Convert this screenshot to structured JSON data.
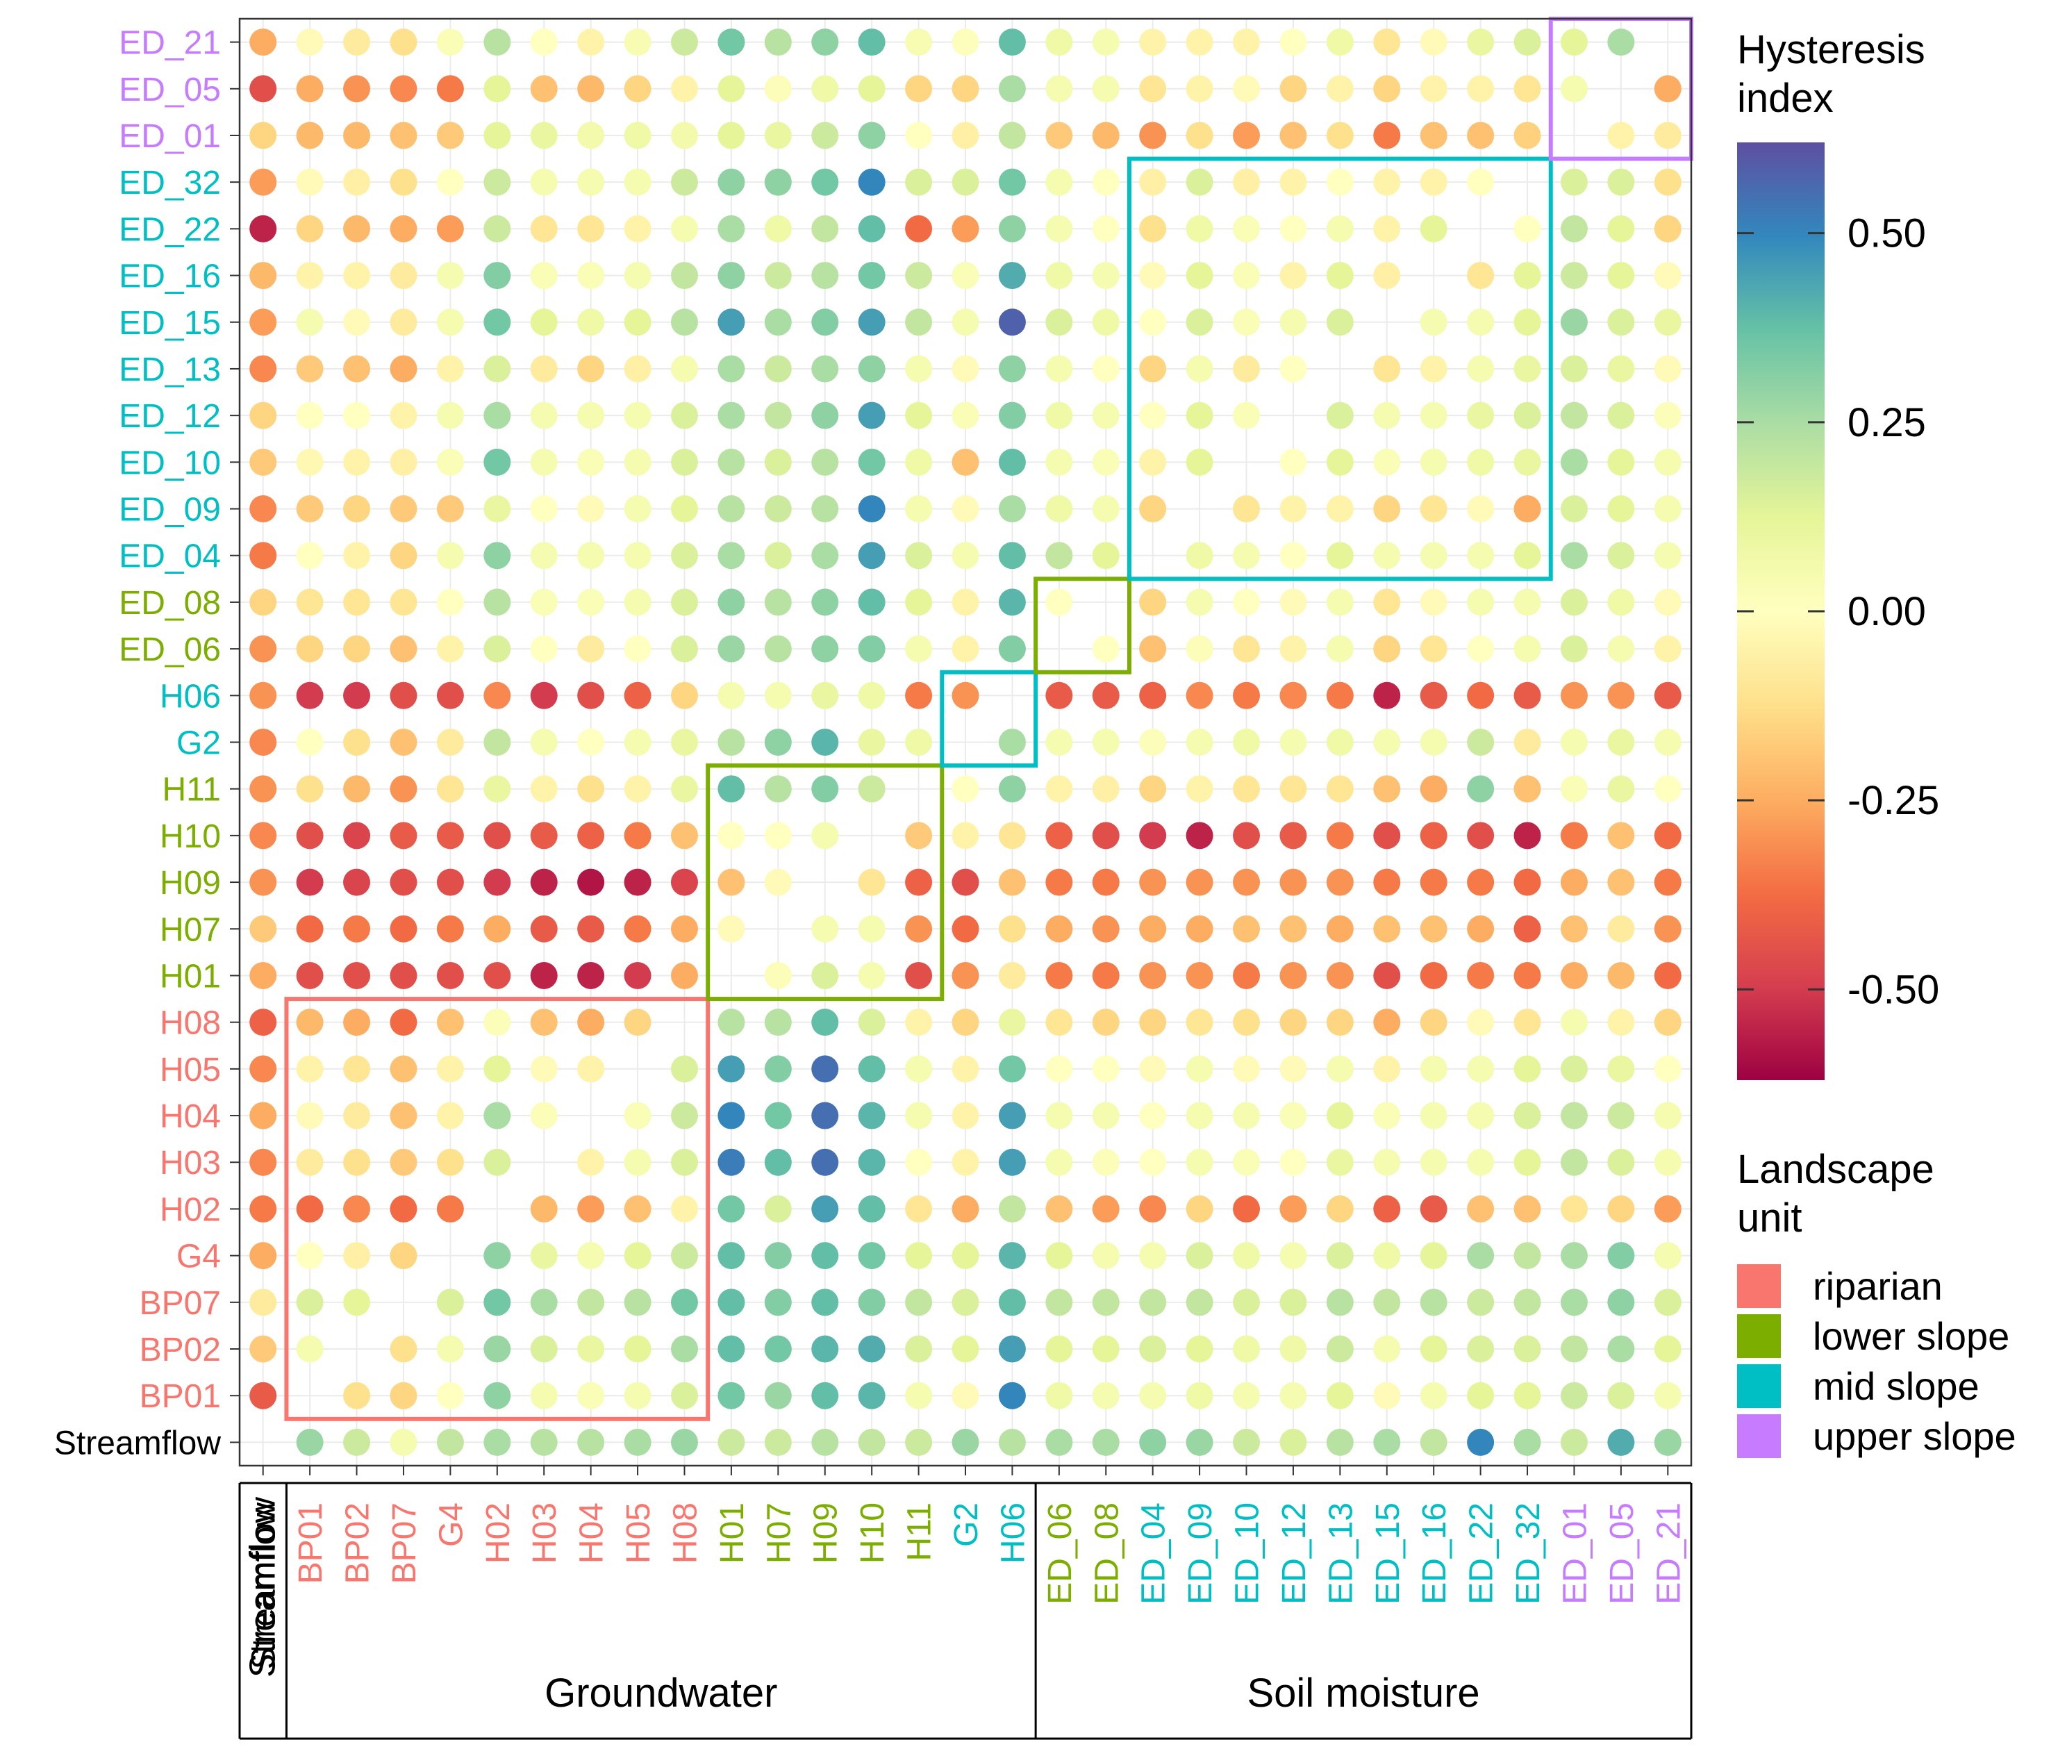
{
  "chart_data": {
    "type": "heatmap",
    "subtype": "dot-matrix",
    "x_categories": [
      "Streamflow",
      "BP01",
      "BP02",
      "BP07",
      "G4",
      "H02",
      "H03",
      "H04",
      "H05",
      "H08",
      "H01",
      "H07",
      "H09",
      "H10",
      "H11",
      "G2",
      "H06",
      "ED_06",
      "ED_08",
      "ED_04",
      "ED_09",
      "ED_10",
      "ED_12",
      "ED_13",
      "ED_15",
      "ED_16",
      "ED_22",
      "ED_32",
      "ED_01",
      "ED_05",
      "ED_21"
    ],
    "y_categories": [
      "Streamflow",
      "BP01",
      "BP02",
      "BP07",
      "G4",
      "H02",
      "H03",
      "H04",
      "H05",
      "H08",
      "H01",
      "H07",
      "H09",
      "H10",
      "H11",
      "G2",
      "H06",
      "ED_06",
      "ED_08",
      "ED_04",
      "ED_09",
      "ED_10",
      "ED_12",
      "ED_13",
      "ED_15",
      "ED_16",
      "ED_22",
      "ED_32",
      "ED_01",
      "ED_05",
      "ED_21"
    ],
    "units": {
      "Streamflow": "none",
      "BP01": "riparian",
      "BP02": "riparian",
      "BP07": "riparian",
      "G4": "riparian",
      "H02": "riparian",
      "H03": "riparian",
      "H04": "riparian",
      "H05": "riparian",
      "H08": "riparian",
      "H01": "lower slope",
      "H07": "lower slope",
      "H09": "lower slope",
      "H10": "lower slope",
      "H11": "lower slope",
      "G2": "mid slope",
      "H06": "mid slope",
      "ED_06": "lower slope",
      "ED_08": "lower slope",
      "ED_04": "mid slope",
      "ED_09": "mid slope",
      "ED_10": "mid slope",
      "ED_12": "mid slope",
      "ED_13": "mid slope",
      "ED_15": "mid slope",
      "ED_16": "mid slope",
      "ED_22": "mid slope",
      "ED_32": "mid slope",
      "ED_01": "upper slope",
      "ED_05": "upper slope",
      "ED_21": "upper slope"
    },
    "groups": [
      {
        "label": "Streamflow",
        "from": "Streamflow",
        "to": "Streamflow",
        "vertical": true
      },
      {
        "label": "Groundwater",
        "from": "BP01",
        "to": "H06",
        "vertical": false
      },
      {
        "label": "Soil moisture",
        "from": "ED_06",
        "to": "ED_21",
        "vertical": false
      }
    ],
    "highlight_boxes": [
      {
        "unit": "riparian",
        "from": "BP01",
        "to": "H08"
      },
      {
        "unit": "lower slope",
        "from": "H01",
        "to": "H11"
      },
      {
        "unit": "mid slope",
        "from": "G2",
        "to": "H06"
      },
      {
        "unit": "lower slope",
        "from": "ED_06",
        "to": "ED_08"
      },
      {
        "unit": "mid slope",
        "from": "ED_04",
        "to": "ED_32"
      },
      {
        "unit": "upper slope",
        "from": "ED_01",
        "to": "ED_21"
      }
    ],
    "value_range": [
      -0.62,
      0.62
    ],
    "colorbar": {
      "title": "Hysteresis index",
      "title_lines": [
        "Hysteresis",
        "index"
      ],
      "ticks": [
        0.5,
        0.25,
        0.0,
        -0.25,
        -0.5
      ],
      "tick_labels": [
        "0.50",
        "0.25",
        "0.00",
        "-0.25",
        "-0.50"
      ],
      "palette": [
        "#9e0142",
        "#d53e4f",
        "#f46d43",
        "#fdae61",
        "#fee08b",
        "#ffffbf",
        "#e6f598",
        "#abdda4",
        "#66c2a5",
        "#3288bd",
        "#5e4fa2"
      ]
    },
    "legend": {
      "title": "Landscape unit",
      "title_lines": [
        "Landscape",
        "unit"
      ],
      "position": "right",
      "items": [
        {
          "label": "riparian",
          "unit": "riparian",
          "color": "#f8766d"
        },
        {
          "label": "lower slope",
          "unit": "lower slope",
          "color": "#7cae00"
        },
        {
          "label": "mid slope",
          "unit": "mid slope",
          "color": "#00bfc4"
        },
        {
          "label": "upper slope",
          "unit": "upper slope",
          "color": "#c77cff"
        }
      ]
    },
    "unit_colors": {
      "none": "#000000",
      "riparian": "#f8766d",
      "lower slope": "#7cae00",
      "mid slope": "#00bfc4",
      "upper slope": "#c77cff"
    },
    "grid": true,
    "rows": {
      "ED_21": [
        -0.25,
        -0.02,
        -0.08,
        -0.12,
        0.03,
        0.22,
        0.0,
        -0.05,
        0.04,
        0.18,
        0.35,
        0.22,
        0.3,
        0.38,
        0.04,
        0.01,
        0.38,
        0.08,
        0.05,
        -0.05,
        -0.05,
        -0.05,
        0.0,
        0.08,
        -0.1,
        -0.02,
        0.1,
        0.15,
        0.12,
        0.25,
        null
      ],
      "ED_05": [
        -0.45,
        -0.25,
        -0.3,
        -0.32,
        -0.35,
        0.12,
        -0.2,
        -0.22,
        -0.15,
        -0.05,
        0.12,
        0.02,
        0.08,
        0.12,
        -0.15,
        -0.15,
        0.25,
        0.05,
        0.05,
        -0.1,
        -0.05,
        -0.02,
        -0.15,
        -0.05,
        -0.15,
        -0.05,
        -0.05,
        -0.1,
        0.05,
        null,
        -0.25
      ],
      "ED_01": [
        -0.15,
        -0.22,
        -0.22,
        -0.2,
        -0.18,
        0.12,
        0.1,
        0.06,
        0.08,
        0.06,
        0.12,
        0.1,
        0.18,
        0.3,
        0.0,
        -0.06,
        0.2,
        -0.18,
        -0.22,
        -0.3,
        -0.12,
        -0.28,
        -0.2,
        -0.12,
        -0.35,
        -0.2,
        -0.2,
        -0.16,
        null,
        -0.05,
        -0.08
      ],
      "ED_32": [
        -0.28,
        -0.02,
        -0.06,
        -0.12,
        0.0,
        0.18,
        0.05,
        0.05,
        0.05,
        0.18,
        0.3,
        0.3,
        0.35,
        0.5,
        0.15,
        0.15,
        0.35,
        0.05,
        0.0,
        -0.06,
        0.15,
        -0.06,
        -0.05,
        0.0,
        -0.05,
        -0.05,
        0.0,
        null,
        0.15,
        0.15,
        -0.12
      ],
      "ED_22": [
        -0.55,
        -0.15,
        -0.22,
        -0.25,
        -0.28,
        0.18,
        -0.1,
        -0.1,
        -0.05,
        0.05,
        0.25,
        0.08,
        0.2,
        0.38,
        -0.38,
        -0.28,
        0.3,
        0.05,
        0.0,
        -0.12,
        0.08,
        0.03,
        0.0,
        0.05,
        -0.05,
        0.12,
        null,
        0.0,
        0.2,
        0.12,
        -0.15
      ],
      "ED_16": [
        -0.22,
        -0.05,
        -0.05,
        -0.08,
        0.05,
        0.32,
        0.03,
        0.03,
        0.05,
        0.2,
        0.3,
        0.18,
        0.22,
        0.35,
        0.18,
        0.03,
        0.42,
        0.08,
        0.05,
        -0.02,
        0.12,
        0.03,
        -0.05,
        0.12,
        -0.06,
        null,
        -0.1,
        0.12,
        0.18,
        0.12,
        -0.02
      ],
      "ED_15": [
        -0.28,
        0.05,
        -0.02,
        -0.08,
        0.05,
        0.35,
        0.12,
        0.08,
        0.12,
        0.22,
        0.45,
        0.25,
        0.32,
        0.45,
        0.2,
        0.05,
        0.58,
        0.15,
        0.08,
        0.0,
        0.15,
        0.03,
        0.05,
        0.15,
        null,
        0.05,
        0.05,
        0.12,
        0.28,
        0.15,
        0.1
      ],
      "ED_13": [
        -0.32,
        -0.18,
        -0.2,
        -0.25,
        -0.05,
        0.15,
        -0.08,
        -0.15,
        -0.06,
        0.05,
        0.25,
        0.18,
        0.25,
        0.3,
        0.05,
        -0.02,
        0.3,
        0.05,
        0.0,
        -0.15,
        0.05,
        -0.08,
        0.0,
        null,
        -0.1,
        -0.05,
        0.05,
        0.1,
        0.15,
        0.1,
        -0.02
      ],
      "ED_12": [
        -0.15,
        0.0,
        0.0,
        -0.05,
        0.05,
        0.25,
        0.05,
        0.05,
        0.05,
        0.15,
        0.25,
        0.2,
        0.3,
        0.45,
        0.12,
        0.03,
        0.32,
        0.08,
        0.05,
        0.0,
        0.12,
        0.03,
        null,
        0.15,
        0.05,
        0.05,
        0.1,
        0.15,
        0.2,
        0.15,
        0.02
      ],
      "ED_10": [
        -0.18,
        -0.03,
        -0.05,
        -0.06,
        0.03,
        0.35,
        0.05,
        0.03,
        0.05,
        0.15,
        0.22,
        0.15,
        0.22,
        0.35,
        0.08,
        -0.2,
        0.38,
        0.05,
        0.03,
        -0.05,
        0.12,
        null,
        0.0,
        0.12,
        0.03,
        0.05,
        0.08,
        0.1,
        0.25,
        0.12,
        0.05
      ],
      "ED_09": [
        -0.32,
        -0.18,
        -0.15,
        -0.18,
        -0.18,
        0.1,
        0.0,
        -0.02,
        0.05,
        0.12,
        0.22,
        0.18,
        0.22,
        0.5,
        0.05,
        -0.02,
        0.25,
        0.08,
        0.05,
        -0.15,
        null,
        -0.1,
        -0.05,
        -0.05,
        -0.15,
        -0.1,
        -0.02,
        -0.25,
        0.15,
        0.12,
        0.05
      ],
      "ED_04": [
        -0.35,
        0.0,
        -0.05,
        -0.15,
        0.05,
        0.3,
        0.05,
        0.05,
        0.05,
        0.15,
        0.25,
        0.15,
        0.25,
        0.45,
        0.15,
        0.05,
        0.38,
        0.2,
        0.12,
        null,
        0.08,
        0.05,
        0.0,
        0.12,
        0.05,
        0.05,
        0.05,
        0.12,
        0.25,
        0.15,
        0.05
      ],
      "ED_08": [
        -0.15,
        -0.1,
        -0.1,
        -0.1,
        0.0,
        0.22,
        0.03,
        0.03,
        0.05,
        0.15,
        0.3,
        0.22,
        0.3,
        0.38,
        0.12,
        -0.05,
        0.4,
        0.0,
        null,
        -0.15,
        0.05,
        0.0,
        -0.02,
        0.05,
        -0.1,
        -0.02,
        0.05,
        0.05,
        0.15,
        0.08,
        -0.02
      ],
      "ED_06": [
        -0.3,
        -0.15,
        -0.15,
        -0.2,
        -0.05,
        0.15,
        0.0,
        -0.08,
        0.0,
        0.15,
        0.28,
        0.22,
        0.3,
        0.32,
        0.05,
        -0.05,
        0.32,
        null,
        0.0,
        -0.2,
        0.02,
        -0.1,
        -0.05,
        0.05,
        -0.15,
        -0.1,
        0.0,
        0.05,
        0.15,
        0.05,
        -0.05
      ],
      "H06": [
        -0.3,
        -0.5,
        -0.5,
        -0.45,
        -0.45,
        -0.32,
        -0.5,
        -0.45,
        -0.4,
        -0.15,
        0.05,
        0.05,
        0.1,
        0.08,
        -0.35,
        -0.3,
        null,
        -0.42,
        -0.42,
        -0.4,
        -0.32,
        -0.35,
        -0.32,
        -0.35,
        -0.55,
        -0.42,
        -0.38,
        -0.42,
        -0.3,
        -0.3,
        -0.42
      ],
      "G2": [
        -0.32,
        0.0,
        -0.12,
        -0.2,
        -0.08,
        0.2,
        0.05,
        0.0,
        0.05,
        0.1,
        0.22,
        0.3,
        0.4,
        0.1,
        0.08,
        null,
        0.25,
        0.05,
        0.05,
        0.02,
        0.05,
        0.08,
        0.05,
        0.08,
        0.05,
        0.05,
        0.18,
        -0.08,
        0.05,
        0.1,
        0.05
      ],
      "H11": [
        -0.3,
        -0.12,
        -0.22,
        -0.3,
        -0.1,
        0.1,
        -0.05,
        -0.12,
        -0.05,
        0.1,
        0.38,
        0.22,
        0.32,
        0.18,
        null,
        0.0,
        0.3,
        -0.05,
        -0.06,
        -0.15,
        -0.05,
        -0.1,
        -0.1,
        -0.1,
        -0.2,
        -0.25,
        0.3,
        -0.2,
        0.03,
        0.1,
        0.0
      ],
      "H10": [
        -0.32,
        -0.45,
        -0.48,
        -0.42,
        -0.42,
        -0.45,
        -0.42,
        -0.4,
        -0.35,
        -0.2,
        0.0,
        0.0,
        0.05,
        null,
        -0.18,
        -0.05,
        -0.1,
        -0.4,
        -0.45,
        -0.5,
        -0.55,
        -0.45,
        -0.42,
        -0.35,
        -0.45,
        -0.4,
        -0.45,
        -0.55,
        -0.35,
        -0.2,
        -0.38
      ],
      "H09": [
        -0.3,
        -0.5,
        -0.48,
        -0.45,
        -0.45,
        -0.5,
        -0.55,
        -0.58,
        -0.55,
        -0.48,
        -0.2,
        -0.02,
        null,
        -0.1,
        -0.4,
        -0.45,
        -0.2,
        -0.35,
        -0.35,
        -0.3,
        -0.3,
        -0.3,
        -0.3,
        -0.3,
        -0.35,
        -0.35,
        -0.35,
        -0.38,
        -0.25,
        -0.2,
        -0.35
      ],
      "H07": [
        -0.18,
        -0.38,
        -0.35,
        -0.38,
        -0.35,
        -0.25,
        -0.42,
        -0.42,
        -0.35,
        -0.25,
        -0.02,
        null,
        0.05,
        0.05,
        -0.3,
        -0.38,
        -0.12,
        -0.25,
        -0.3,
        -0.25,
        -0.25,
        -0.2,
        -0.2,
        -0.25,
        -0.2,
        -0.2,
        -0.25,
        -0.4,
        -0.2,
        -0.08,
        -0.3
      ],
      "H01": [
        -0.25,
        -0.45,
        -0.45,
        -0.45,
        -0.45,
        -0.45,
        -0.55,
        -0.55,
        -0.5,
        -0.25,
        null,
        0.02,
        0.15,
        0.05,
        -0.45,
        -0.3,
        -0.08,
        -0.35,
        -0.35,
        -0.3,
        -0.3,
        -0.35,
        -0.3,
        -0.3,
        -0.45,
        -0.38,
        -0.35,
        -0.35,
        -0.25,
        -0.22,
        -0.38
      ],
      "H08": [
        -0.4,
        -0.22,
        -0.25,
        -0.38,
        -0.2,
        0.02,
        -0.2,
        -0.25,
        -0.15,
        null,
        0.22,
        0.22,
        0.38,
        0.15,
        -0.05,
        -0.15,
        0.1,
        -0.1,
        -0.15,
        -0.15,
        -0.1,
        -0.12,
        -0.15,
        -0.15,
        -0.25,
        -0.15,
        -0.02,
        -0.1,
        0.05,
        -0.05,
        -0.15
      ],
      "H05": [
        -0.32,
        -0.05,
        -0.1,
        -0.2,
        -0.05,
        0.12,
        -0.02,
        -0.05,
        null,
        0.15,
        0.45,
        0.32,
        0.55,
        0.38,
        0.05,
        -0.05,
        0.35,
        0.0,
        0.0,
        -0.02,
        0.05,
        -0.02,
        -0.02,
        0.05,
        -0.05,
        0.05,
        0.05,
        0.12,
        0.15,
        0.1,
        0.0
      ],
      "H04": [
        -0.25,
        -0.02,
        -0.08,
        -0.2,
        -0.05,
        0.25,
        0.02,
        null,
        0.03,
        0.18,
        0.5,
        0.35,
        0.55,
        0.4,
        0.05,
        -0.05,
        0.45,
        0.05,
        0.05,
        0.0,
        0.05,
        0.05,
        0.03,
        0.12,
        0.03,
        0.05,
        0.05,
        0.15,
        0.2,
        0.18,
        0.05
      ],
      "H03": [
        -0.32,
        -0.08,
        -0.12,
        -0.18,
        -0.12,
        0.15,
        null,
        -0.05,
        0.05,
        0.15,
        0.52,
        0.38,
        0.55,
        0.4,
        0.0,
        -0.05,
        0.45,
        0.05,
        0.02,
        0.0,
        0.05,
        0.03,
        0.0,
        0.1,
        0.05,
        0.05,
        0.05,
        0.12,
        0.2,
        0.15,
        0.05
      ],
      "H02": [
        -0.35,
        -0.38,
        -0.32,
        -0.38,
        -0.35,
        null,
        -0.22,
        -0.28,
        -0.2,
        -0.05,
        0.35,
        0.15,
        0.45,
        0.38,
        -0.1,
        -0.25,
        0.2,
        -0.2,
        -0.28,
        -0.32,
        -0.15,
        -0.38,
        -0.28,
        -0.15,
        -0.4,
        -0.42,
        -0.2,
        -0.2,
        -0.1,
        -0.15,
        -0.28
      ],
      "G4": [
        -0.25,
        0.0,
        -0.06,
        -0.15,
        null,
        0.3,
        0.1,
        0.05,
        0.12,
        0.18,
        0.38,
        0.32,
        0.38,
        0.35,
        0.12,
        0.12,
        0.4,
        0.12,
        0.05,
        0.05,
        0.15,
        0.08,
        0.05,
        0.15,
        0.08,
        0.12,
        0.25,
        0.2,
        0.25,
        0.32,
        0.05
      ],
      "BP07": [
        -0.08,
        0.15,
        0.12,
        null,
        0.15,
        0.35,
        0.25,
        0.2,
        0.22,
        0.35,
        0.38,
        0.32,
        0.38,
        0.32,
        0.2,
        0.15,
        0.38,
        0.2,
        0.2,
        0.2,
        0.2,
        0.15,
        0.15,
        0.22,
        0.2,
        0.22,
        0.18,
        0.2,
        0.25,
        0.3,
        0.15
      ],
      "BP02": [
        -0.18,
        0.05,
        null,
        -0.12,
        0.05,
        0.28,
        0.15,
        0.1,
        0.12,
        0.25,
        0.38,
        0.35,
        0.4,
        0.42,
        0.15,
        0.12,
        0.45,
        0.12,
        0.12,
        0.15,
        0.12,
        0.08,
        0.08,
        0.18,
        0.05,
        0.12,
        0.15,
        0.15,
        0.2,
        0.25,
        0.12
      ],
      "BP01": [
        -0.42,
        null,
        -0.12,
        -0.15,
        0.0,
        0.3,
        0.05,
        0.03,
        0.05,
        0.15,
        0.35,
        0.28,
        0.38,
        0.4,
        0.05,
        -0.02,
        0.5,
        0.08,
        0.05,
        0.05,
        0.08,
        0.05,
        0.05,
        0.12,
        -0.02,
        0.05,
        0.12,
        0.12,
        0.18,
        0.15,
        0.05
      ],
      "Streamflow": [
        null,
        0.28,
        0.18,
        0.05,
        0.2,
        0.25,
        0.22,
        0.22,
        0.25,
        0.28,
        0.18,
        0.18,
        0.22,
        0.2,
        0.18,
        0.28,
        0.22,
        0.25,
        0.25,
        0.3,
        0.28,
        0.18,
        0.15,
        0.22,
        0.25,
        0.2,
        0.5,
        0.25,
        0.18,
        0.42,
        0.28
      ]
    }
  }
}
